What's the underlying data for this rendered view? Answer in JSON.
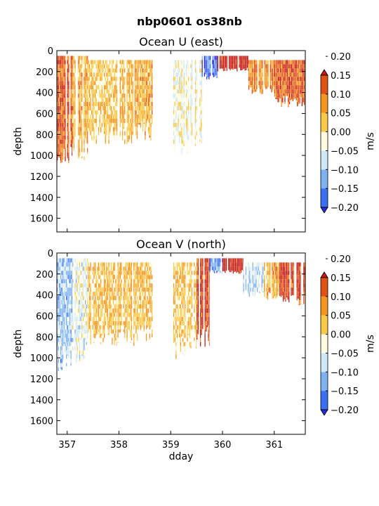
{
  "figure": {
    "suptitle": "nbp0601 os38nb"
  },
  "colorbar": {
    "label": "m/s",
    "levels": [
      -0.2,
      -0.15,
      -0.1,
      -0.05,
      0.0,
      0.05,
      0.1,
      0.15,
      0.2
    ],
    "tick_labels": [
      "−0.20",
      "−0.15",
      "−0.10",
      "−0.05",
      "0.00",
      "0.05",
      "0.10",
      "0.15",
      "0.20"
    ],
    "colors": [
      "#2a2ae6",
      "#3a6ff2",
      "#7fb2f0",
      "#cfe8f6",
      "#fffbe0",
      "#f9c94a",
      "#f3951f",
      "#e15016",
      "#c41a10"
    ],
    "extend": "both"
  },
  "chart_data": [
    {
      "type": "heatmap",
      "title": "Ocean U (east)",
      "xlabel": "",
      "ylabel": "depth",
      "xlim": [
        356.8,
        361.6
      ],
      "ylim": [
        1730,
        0
      ],
      "yticks": [
        0,
        200,
        400,
        600,
        800,
        1000,
        1200,
        1400,
        1600
      ],
      "yticklabels": [
        "0",
        "200",
        "400",
        "600",
        "800",
        "1000",
        "1200",
        "1400",
        "1600"
      ],
      "xticks": [
        357,
        358,
        359,
        360,
        361
      ],
      "xticklabels": [],
      "colorbar_label": "m/s",
      "segments": [
        {
          "x": [
            356.8,
            357.1
          ],
          "depth": [
            50,
            1130
          ],
          "mean": 0.12
        },
        {
          "x": [
            357.1,
            357.4
          ],
          "depth": [
            50,
            1050
          ],
          "mean": 0.05
        },
        {
          "x": [
            357.4,
            357.95
          ],
          "depth": [
            90,
            900
          ],
          "mean": 0.02
        },
        {
          "x": [
            357.95,
            358.3
          ],
          "depth": [
            90,
            900
          ],
          "mean": 0.04
        },
        {
          "x": [
            358.3,
            358.65
          ],
          "depth": [
            90,
            860
          ],
          "mean": 0.05
        },
        {
          "x": [
            359.05,
            359.6
          ],
          "depth": [
            90,
            1010
          ],
          "mean": -0.03
        },
        {
          "x": [
            359.6,
            359.9
          ],
          "depth": [
            50,
            280
          ],
          "mean": -0.18
        },
        {
          "x": [
            359.9,
            360.5
          ],
          "depth": [
            50,
            200
          ],
          "mean": 0.2
        },
        {
          "x": [
            360.5,
            361.0
          ],
          "depth": [
            90,
            420
          ],
          "mean": 0.08
        },
        {
          "x": [
            361.0,
            361.6
          ],
          "depth": [
            90,
            540
          ],
          "mean": 0.12
        }
      ]
    },
    {
      "type": "heatmap",
      "title": "Ocean V (north)",
      "xlabel": "dday",
      "ylabel": "depth",
      "xlim": [
        356.8,
        361.6
      ],
      "ylim": [
        1730,
        0
      ],
      "yticks": [
        0,
        200,
        400,
        600,
        800,
        1000,
        1200,
        1400,
        1600
      ],
      "yticklabels": [
        "0",
        "200",
        "400",
        "600",
        "800",
        "1000",
        "1200",
        "1400",
        "1600"
      ],
      "xticks": [
        357,
        358,
        359,
        360,
        361
      ],
      "xticklabels": [
        "357",
        "358",
        "359",
        "360",
        "361"
      ],
      "colorbar_label": "m/s",
      "segments": [
        {
          "x": [
            356.8,
            357.1
          ],
          "depth": [
            50,
            1130
          ],
          "mean": -0.1
        },
        {
          "x": [
            357.1,
            357.4
          ],
          "depth": [
            50,
            1050
          ],
          "mean": -0.05
        },
        {
          "x": [
            357.4,
            357.95
          ],
          "depth": [
            90,
            900
          ],
          "mean": 0.03
        },
        {
          "x": [
            357.95,
            358.3
          ],
          "depth": [
            90,
            900
          ],
          "mean": 0.04
        },
        {
          "x": [
            358.3,
            358.65
          ],
          "depth": [
            90,
            860
          ],
          "mean": 0.03
        },
        {
          "x": [
            359.05,
            359.5
          ],
          "depth": [
            90,
            1010
          ],
          "mean": 0.02
        },
        {
          "x": [
            359.5,
            359.75
          ],
          "depth": [
            50,
            920
          ],
          "mean": 0.15
        },
        {
          "x": [
            359.75,
            360.0
          ],
          "depth": [
            50,
            200
          ],
          "mean": -0.15
        },
        {
          "x": [
            360.0,
            360.4
          ],
          "depth": [
            50,
            200
          ],
          "mean": 0.2
        },
        {
          "x": [
            360.4,
            360.8
          ],
          "depth": [
            90,
            420
          ],
          "mean": -0.08
        },
        {
          "x": [
            360.8,
            361.1
          ],
          "depth": [
            90,
            450
          ],
          "mean": 0.05
        },
        {
          "x": [
            361.1,
            361.6
          ],
          "depth": [
            90,
            500
          ],
          "mean": 0.15
        }
      ]
    }
  ]
}
